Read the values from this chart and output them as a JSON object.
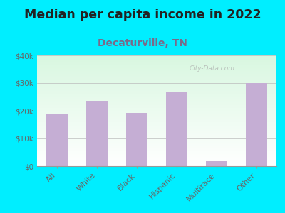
{
  "title": "Median per capita income in 2022",
  "subtitle": "Decaturville, TN",
  "categories": [
    "All",
    "White",
    "Black",
    "Hispanic",
    "Multirace",
    "Other"
  ],
  "values": [
    19000,
    23500,
    19200,
    27000,
    1800,
    30000
  ],
  "bar_color": "#c5aed4",
  "title_fontsize": 12.5,
  "title_color": "#222222",
  "subtitle_fontsize": 10,
  "subtitle_color": "#7a6a8a",
  "background_outer": "#00eeff",
  "ylim": [
    0,
    40000
  ],
  "yticks": [
    0,
    10000,
    20000,
    30000,
    40000
  ],
  "ytick_labels": [
    "$0",
    "$10k",
    "$20k",
    "$30k",
    "$40k"
  ],
  "watermark": "City-Data.com",
  "grid_color": "#bbbbbb",
  "tick_label_color": "#666666"
}
